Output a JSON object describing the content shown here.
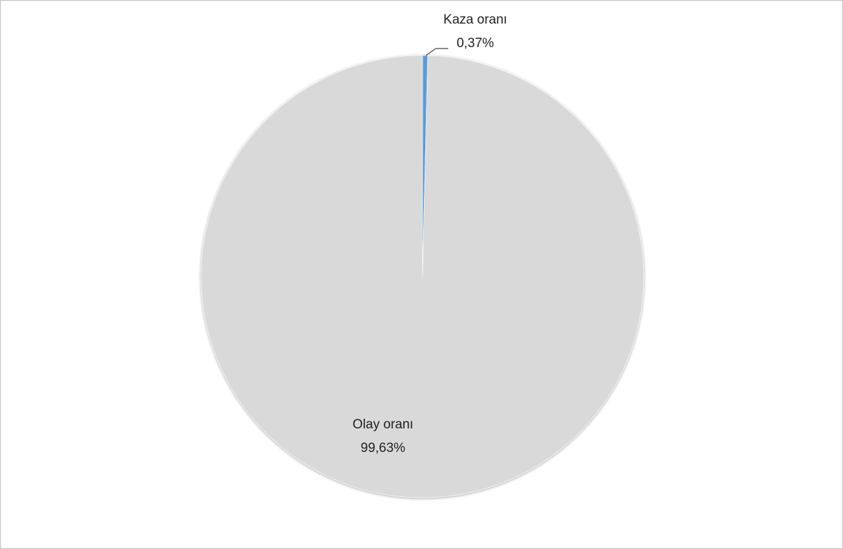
{
  "chart_data": {
    "type": "pie",
    "categories": [
      "Kaza oranı",
      "Olay oranı"
    ],
    "values": [
      0.37,
      99.63
    ],
    "data_labels": [
      {
        "category": "Kaza oranı",
        "value_text": "0,37%"
      },
      {
        "category": "Olay oranı",
        "value_text": "99,63%"
      }
    ],
    "colors": [
      "#5b9bd5",
      "#d9d9d9"
    ],
    "start_angle_deg": 0,
    "direction": "clockwise",
    "legend": "none",
    "title": ""
  }
}
